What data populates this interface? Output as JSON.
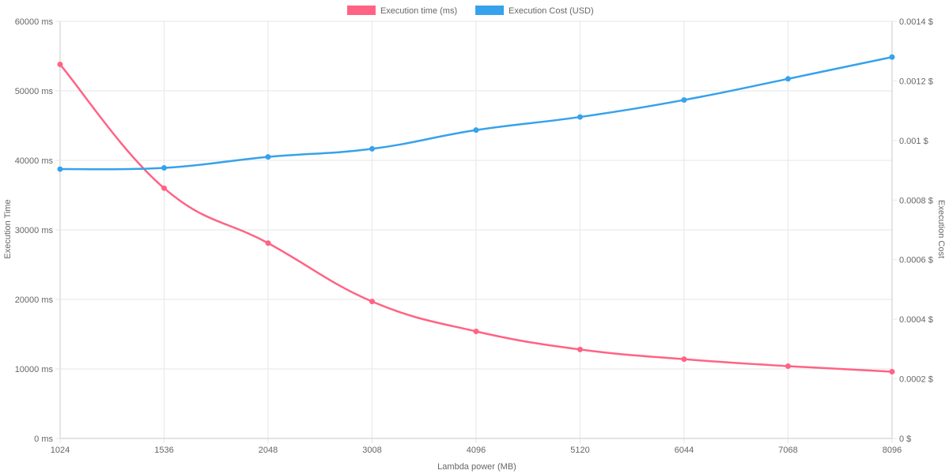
{
  "chart_data": {
    "type": "line",
    "title": "",
    "xlabel": "Lambda power (MB)",
    "categories": [
      "1024",
      "1536",
      "2048",
      "3008",
      "4096",
      "5120",
      "6044",
      "7068",
      "8096"
    ],
    "legend_position": "top",
    "grid": true,
    "y_left": {
      "label": "Execution Time",
      "range": [
        0,
        60000
      ],
      "ticks": [
        "0 ms",
        "10000 ms",
        "20000 ms",
        "30000 ms",
        "40000 ms",
        "50000 ms",
        "60000 ms"
      ],
      "tick_values": [
        0,
        10000,
        20000,
        30000,
        40000,
        50000,
        60000
      ]
    },
    "y_right": {
      "label": "Execution Cost",
      "range": [
        0,
        0.0014
      ],
      "ticks": [
        "0 $",
        "0.0002 $",
        "0.0004 $",
        "0.0006 $",
        "0.0008 $",
        "0.001 $",
        "0.0012 $",
        "0.0014 $"
      ],
      "tick_values": [
        0,
        0.0002,
        0.0004,
        0.0006,
        0.0008,
        0.001,
        0.0012,
        0.0014
      ]
    },
    "series": [
      {
        "name": "Execution time (ms)",
        "axis": "left",
        "color": "#ff6384",
        "values": [
          53800,
          36000,
          28100,
          19700,
          15400,
          12800,
          11400,
          10400,
          9600
        ]
      },
      {
        "name": "Execution Cost (USD)",
        "axis": "right",
        "color": "#36a2eb",
        "values": [
          0.000904,
          0.000908,
          0.000945,
          0.000972,
          0.001035,
          0.001079,
          0.001136,
          0.001207,
          0.00128
        ]
      }
    ]
  }
}
